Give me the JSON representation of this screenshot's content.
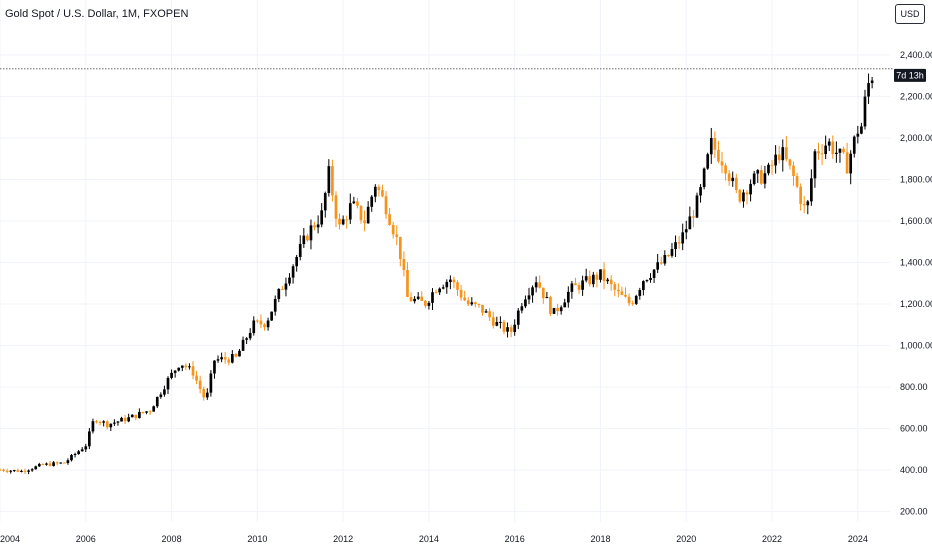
{
  "header": {
    "title": "Gold Spot / U.S. Dollar, 1M, FXOPEN",
    "currency_button": "USD"
  },
  "countdown_badge": "7d 13h",
  "colors": {
    "up": "#000000",
    "down": "#f7931a",
    "grid": "#f0f3fa",
    "text": "#131722",
    "price_line": "#555555"
  },
  "chart_data": {
    "type": "candlestick",
    "title": "Gold Spot / U.S. Dollar, 1M, FXOPEN",
    "interval": "1M",
    "ylim": [
      150,
      2520
    ],
    "xlim": [
      2004.0,
      2024.75
    ],
    "y_ticks": [
      "200.00",
      "400.00",
      "600.00",
      "800.00",
      "1,000.00",
      "1,200.00",
      "1,400.00",
      "1,600.00",
      "1,800.00",
      "2,000.00",
      "2,200.00",
      "2,400.00"
    ],
    "x_ticks": [
      "2004",
      "2006",
      "2008",
      "2010",
      "2012",
      "2014",
      "2016",
      "2018",
      "2020",
      "2022",
      "2024"
    ],
    "last_price": 2333,
    "grid": true,
    "closes": [
      [
        2004.0,
        402
      ],
      [
        2004.5,
        395
      ],
      [
        2005.0,
        425
      ],
      [
        2005.5,
        435
      ],
      [
        2006.0,
        520
      ],
      [
        2006.2,
        650
      ],
      [
        2006.5,
        620
      ],
      [
        2007.0,
        650
      ],
      [
        2007.5,
        690
      ],
      [
        2007.9,
        830
      ],
      [
        2008.2,
        920
      ],
      [
        2008.5,
        870
      ],
      [
        2008.8,
        730
      ],
      [
        2009.0,
        930
      ],
      [
        2009.5,
        940
      ],
      [
        2009.9,
        1100
      ],
      [
        2010.2,
        1110
      ],
      [
        2010.5,
        1250
      ],
      [
        2010.9,
        1420
      ],
      [
        2011.2,
        1550
      ],
      [
        2011.5,
        1630
      ],
      [
        2011.67,
        1830
      ],
      [
        2011.9,
        1560
      ],
      [
        2012.2,
        1680
      ],
      [
        2012.5,
        1600
      ],
      [
        2012.75,
        1780
      ],
      [
        2013.0,
        1670
      ],
      [
        2013.3,
        1480
      ],
      [
        2013.5,
        1230
      ],
      [
        2013.9,
        1200
      ],
      [
        2014.2,
        1290
      ],
      [
        2014.5,
        1320
      ],
      [
        2014.9,
        1200
      ],
      [
        2015.2,
        1180
      ],
      [
        2015.6,
        1100
      ],
      [
        2015.9,
        1060
      ],
      [
        2016.2,
        1230
      ],
      [
        2016.5,
        1320
      ],
      [
        2016.9,
        1150
      ],
      [
        2017.3,
        1270
      ],
      [
        2017.7,
        1310
      ],
      [
        2018.0,
        1340
      ],
      [
        2018.4,
        1250
      ],
      [
        2018.7,
        1200
      ],
      [
        2019.0,
        1320
      ],
      [
        2019.5,
        1410
      ],
      [
        2019.9,
        1520
      ],
      [
        2020.3,
        1710
      ],
      [
        2020.58,
        1970
      ],
      [
        2020.9,
        1880
      ],
      [
        2021.2,
        1710
      ],
      [
        2021.5,
        1790
      ],
      [
        2021.9,
        1830
      ],
      [
        2022.2,
        1940
      ],
      [
        2022.5,
        1810
      ],
      [
        2022.8,
        1630
      ],
      [
        2023.0,
        1930
      ],
      [
        2023.3,
        1980
      ],
      [
        2023.75,
        1870
      ],
      [
        2024.0,
        2040
      ],
      [
        2024.1,
        2060
      ],
      [
        2024.2,
        2230
      ],
      [
        2024.3,
        2290
      ],
      [
        2024.4,
        2333
      ]
    ]
  }
}
